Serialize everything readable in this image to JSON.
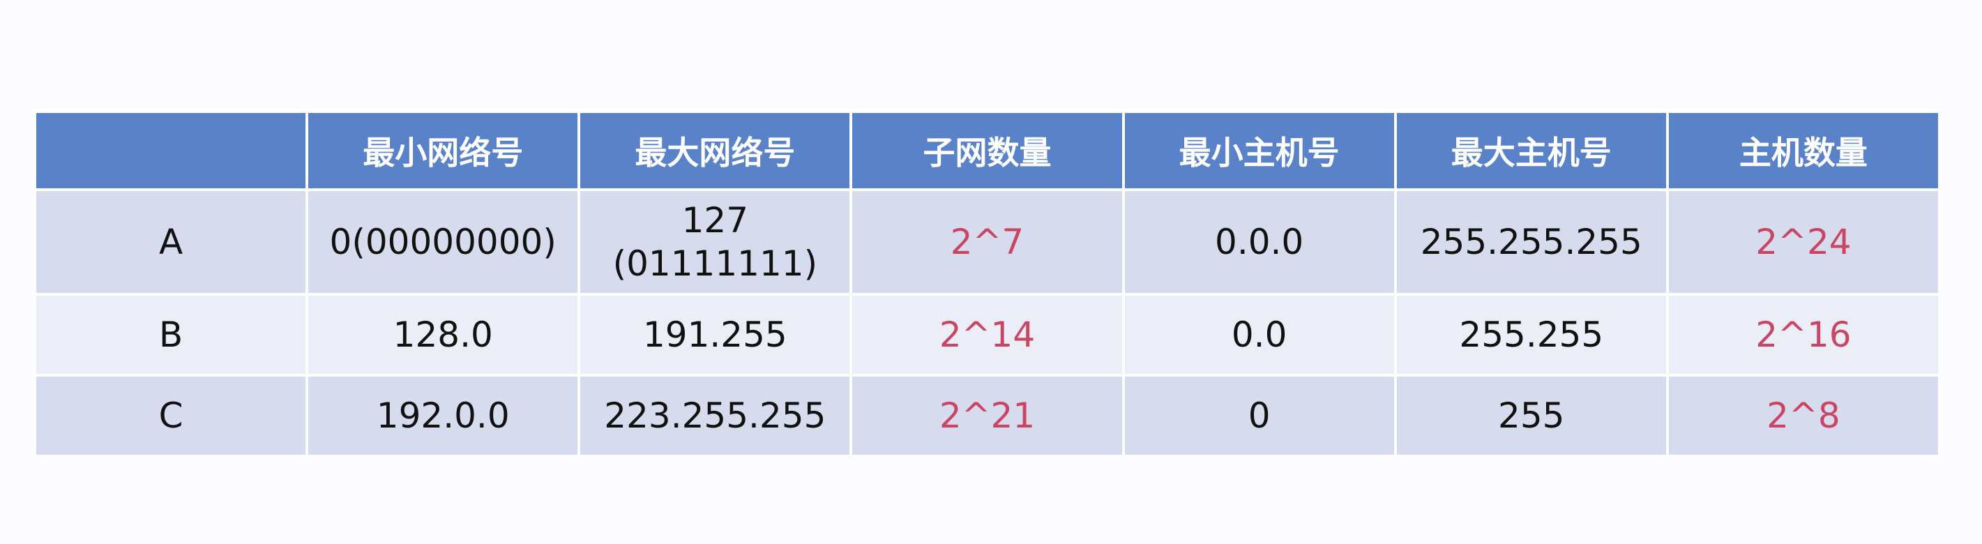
{
  "table": {
    "headers": [
      "",
      "最小网络号",
      "最大网络号",
      "子网数量",
      "最小主机号",
      "最大主机号",
      "主机数量"
    ],
    "rows": [
      {
        "class_label": "A",
        "min_network": "0(00000000)",
        "max_network_line1": "127",
        "max_network_line2": "(01111111)",
        "subnet_count": "2^7",
        "min_host": "0.0.0",
        "max_host": "255.255.255",
        "host_count": "2^24"
      },
      {
        "class_label": "B",
        "min_network": "128.0",
        "max_network": "191.255",
        "subnet_count": "2^14",
        "min_host": "0.0",
        "max_host": "255.255",
        "host_count": "2^16"
      },
      {
        "class_label": "C",
        "min_network": "192.0.0",
        "max_network": "223.255.255",
        "subnet_count": "2^21",
        "min_host": "0",
        "max_host": "255",
        "host_count": "2^8"
      }
    ]
  },
  "colors": {
    "header_bg": "#5a82c9",
    "row_dark": "#d6dbed",
    "row_light": "#eceef7",
    "accent": "#c94563"
  }
}
